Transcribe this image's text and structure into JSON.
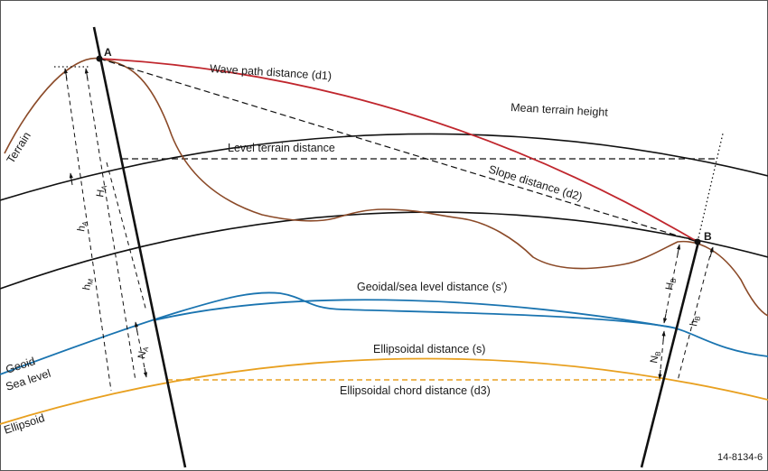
{
  "figure": {
    "labels": {
      "wave_path": "Wave path distance (d1)",
      "mean_terrain": "Mean terrain height",
      "level_terrain": "Level terrain distance",
      "slope": "Slope distance (d2)",
      "geoidal": "Geoidal/sea level distance (s')",
      "ellipsoidal": "Ellipsoidal distance (s)",
      "chord": "Ellipsoidal chord distance (d3)",
      "terrain": "Terrain",
      "geoid": "Geoid",
      "sea_level": "Sea level",
      "ellipsoid": "Ellipsoid",
      "figure_id": "14-8134-6"
    },
    "points": {
      "a": "A",
      "b": "B"
    },
    "symbols": {
      "H_A": {
        "base": "H",
        "sub": "A"
      },
      "h_A": {
        "base": "h",
        "sub": "A"
      },
      "h_M": {
        "base": "h",
        "sub": "M"
      },
      "N_A": {
        "base": "N",
        "sub": "A"
      },
      "H_B": {
        "base": "H",
        "sub": "B"
      },
      "h_B": {
        "base": "h",
        "sub": "B"
      },
      "N_B": {
        "base": "N",
        "sub": "B"
      }
    },
    "colors": {
      "wave_path": "#c0262d",
      "geoid": "#1a74b0",
      "ellipsoid": "#e8a020",
      "terrain": "#8b4a28",
      "lines": "#111111"
    }
  }
}
